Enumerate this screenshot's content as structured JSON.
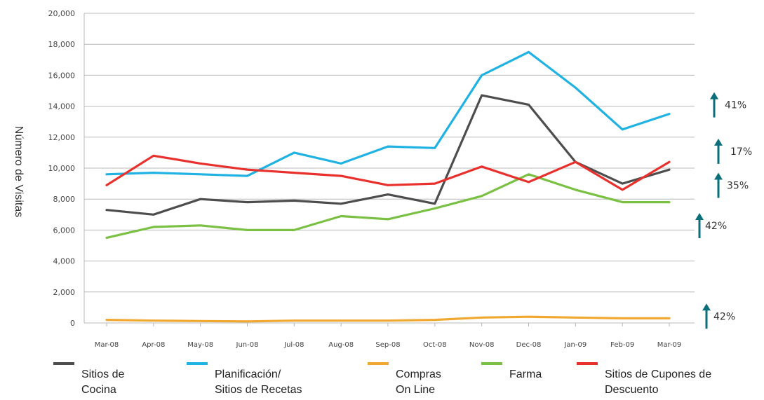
{
  "chart_data": {
    "type": "line",
    "ylabel": "Número de Visitas",
    "ylim": [
      0,
      20000
    ],
    "yticks": [
      "0",
      "2,000",
      "4,000",
      "6,000",
      "8,000",
      "10,000",
      "12,000",
      "14,000",
      "16,000",
      "18,000",
      "20,000"
    ],
    "ytick_values": [
      0,
      2000,
      4000,
      6000,
      8000,
      10000,
      12000,
      14000,
      16000,
      18000,
      20000
    ],
    "categories": [
      "Mar-08",
      "Apr-08",
      "May-08",
      "Jun-08",
      "Jul-08",
      "Aug-08",
      "Sep-08",
      "Oct-08",
      "Nov-08",
      "Dec-08",
      "Jan-09",
      "Feb-09",
      "Mar-09"
    ],
    "grid": "horizontal",
    "legend_position": "bottom",
    "series": [
      {
        "name_lines": [
          "Sitios de",
          "Cocina"
        ],
        "color": "#4d4d4d",
        "values": [
          7300,
          7000,
          8000,
          7800,
          7900,
          7700,
          8300,
          7700,
          14700,
          14100,
          10400,
          9000,
          9900
        ]
      },
      {
        "name_lines": [
          "Planificación/",
          "Sitios de Recetas"
        ],
        "color": "#1fb2e2",
        "values": [
          9600,
          9700,
          9600,
          9500,
          11000,
          10300,
          11400,
          11300,
          16000,
          17500,
          15200,
          12500,
          13500
        ]
      },
      {
        "name_lines": [
          "Compras",
          "On Line"
        ],
        "color": "#f0a830",
        "values": [
          200,
          150,
          120,
          100,
          150,
          150,
          150,
          200,
          350,
          400,
          350,
          300,
          300
        ]
      },
      {
        "name_lines": [
          "Farma"
        ],
        "color": "#7ac143",
        "values": [
          5500,
          6200,
          6300,
          6000,
          6000,
          6900,
          6700,
          7400,
          8200,
          9600,
          8600,
          7800,
          7800
        ]
      },
      {
        "name_lines": [
          "Sitios de Cupones de",
          "Descuento"
        ],
        "color": "#e8302d",
        "values": [
          8900,
          10800,
          10300,
          9900,
          9700,
          9500,
          8900,
          9000,
          10100,
          9100,
          10400,
          8600,
          10400
        ]
      }
    ],
    "annotations": [
      {
        "text": "41%",
        "anchor_value": 15000,
        "arrow": "up"
      },
      {
        "text": "17%",
        "anchor_value": 11300,
        "arrow": "up"
      },
      {
        "text": "35%",
        "anchor_value": 8600,
        "arrow": "up"
      },
      {
        "text": "42%",
        "anchor_value": 6100,
        "arrow": "up"
      },
      {
        "text": "42%",
        "anchor_value": 200,
        "arrow": "up"
      }
    ],
    "colors": {
      "axis_text": "#444444",
      "grid": "#b8b8b8",
      "arrow": "#0a6f7a"
    }
  }
}
